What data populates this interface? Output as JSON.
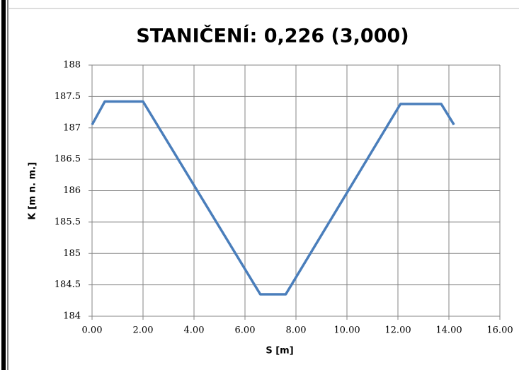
{
  "chart_data": {
    "type": "line",
    "title": "STANIČENÍ: 0,226 (3,000)",
    "x_label": "S [m]",
    "y_label": "K [m n. m.]",
    "x": [
      0,
      0.5,
      2.0,
      6.6,
      7.6,
      12.1,
      13.7,
      14.2
    ],
    "values": [
      187.05,
      187.42,
      187.42,
      184.35,
      184.35,
      187.38,
      187.38,
      187.05
    ],
    "color": "#4a7ebb",
    "xlim": [
      0,
      16
    ],
    "xticks": [
      {
        "value": 0,
        "label": "0.00"
      },
      {
        "value": 2,
        "label": "2.00"
      },
      {
        "value": 4,
        "label": "4.00"
      },
      {
        "value": 6,
        "label": "6.00"
      },
      {
        "value": 8,
        "label": "8.00"
      },
      {
        "value": 10,
        "label": "10.00"
      },
      {
        "value": 12,
        "label": "12.00"
      },
      {
        "value": 14,
        "label": "14.00"
      },
      {
        "value": 16,
        "label": "16.00"
      }
    ],
    "ylim": [
      184,
      188
    ],
    "yticks": [
      184,
      184.5,
      185,
      185.5,
      186,
      186.5,
      187,
      187.5,
      188
    ],
    "grid": true
  }
}
